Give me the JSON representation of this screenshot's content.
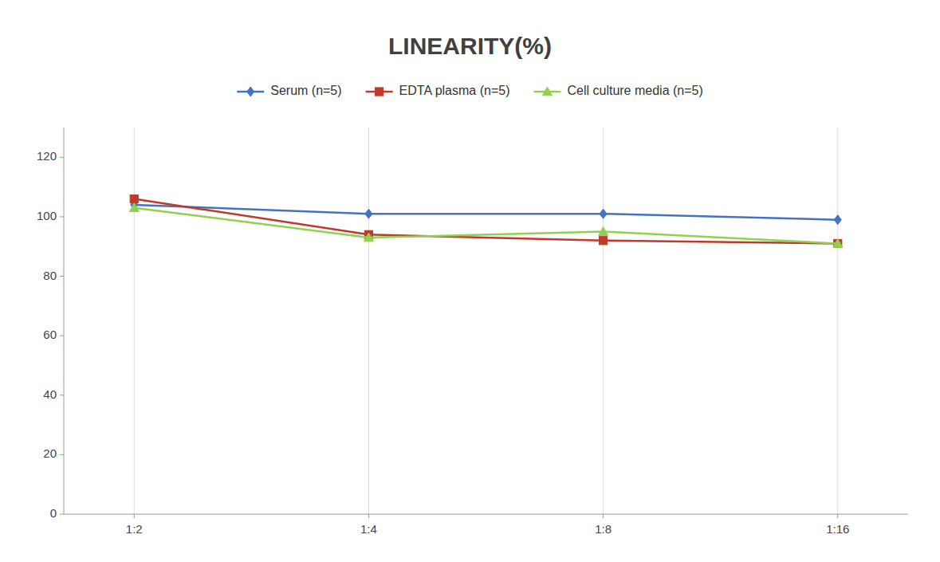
{
  "chart_data": {
    "type": "line",
    "title": "LINEARITY(%)",
    "categories": [
      "1:2",
      "1:4",
      "1:8",
      "1:16"
    ],
    "series": [
      {
        "name": "Serum (n=5)",
        "color": "#4472C4",
        "marker": "diamond",
        "values": [
          104,
          101,
          101,
          99
        ]
      },
      {
        "name": "EDTA plasma (n=5)",
        "color": "#C0392B",
        "marker": "square",
        "values": [
          106,
          94,
          92,
          91
        ]
      },
      {
        "name": "Cell culture media (n=5)",
        "color": "#92D050",
        "marker": "triangle",
        "values": [
          103,
          93,
          95,
          91
        ]
      }
    ],
    "ylim": [
      0,
      130
    ],
    "yticks": [
      0,
      20,
      40,
      60,
      80,
      100,
      120
    ],
    "grid": "x",
    "legend": "top"
  }
}
